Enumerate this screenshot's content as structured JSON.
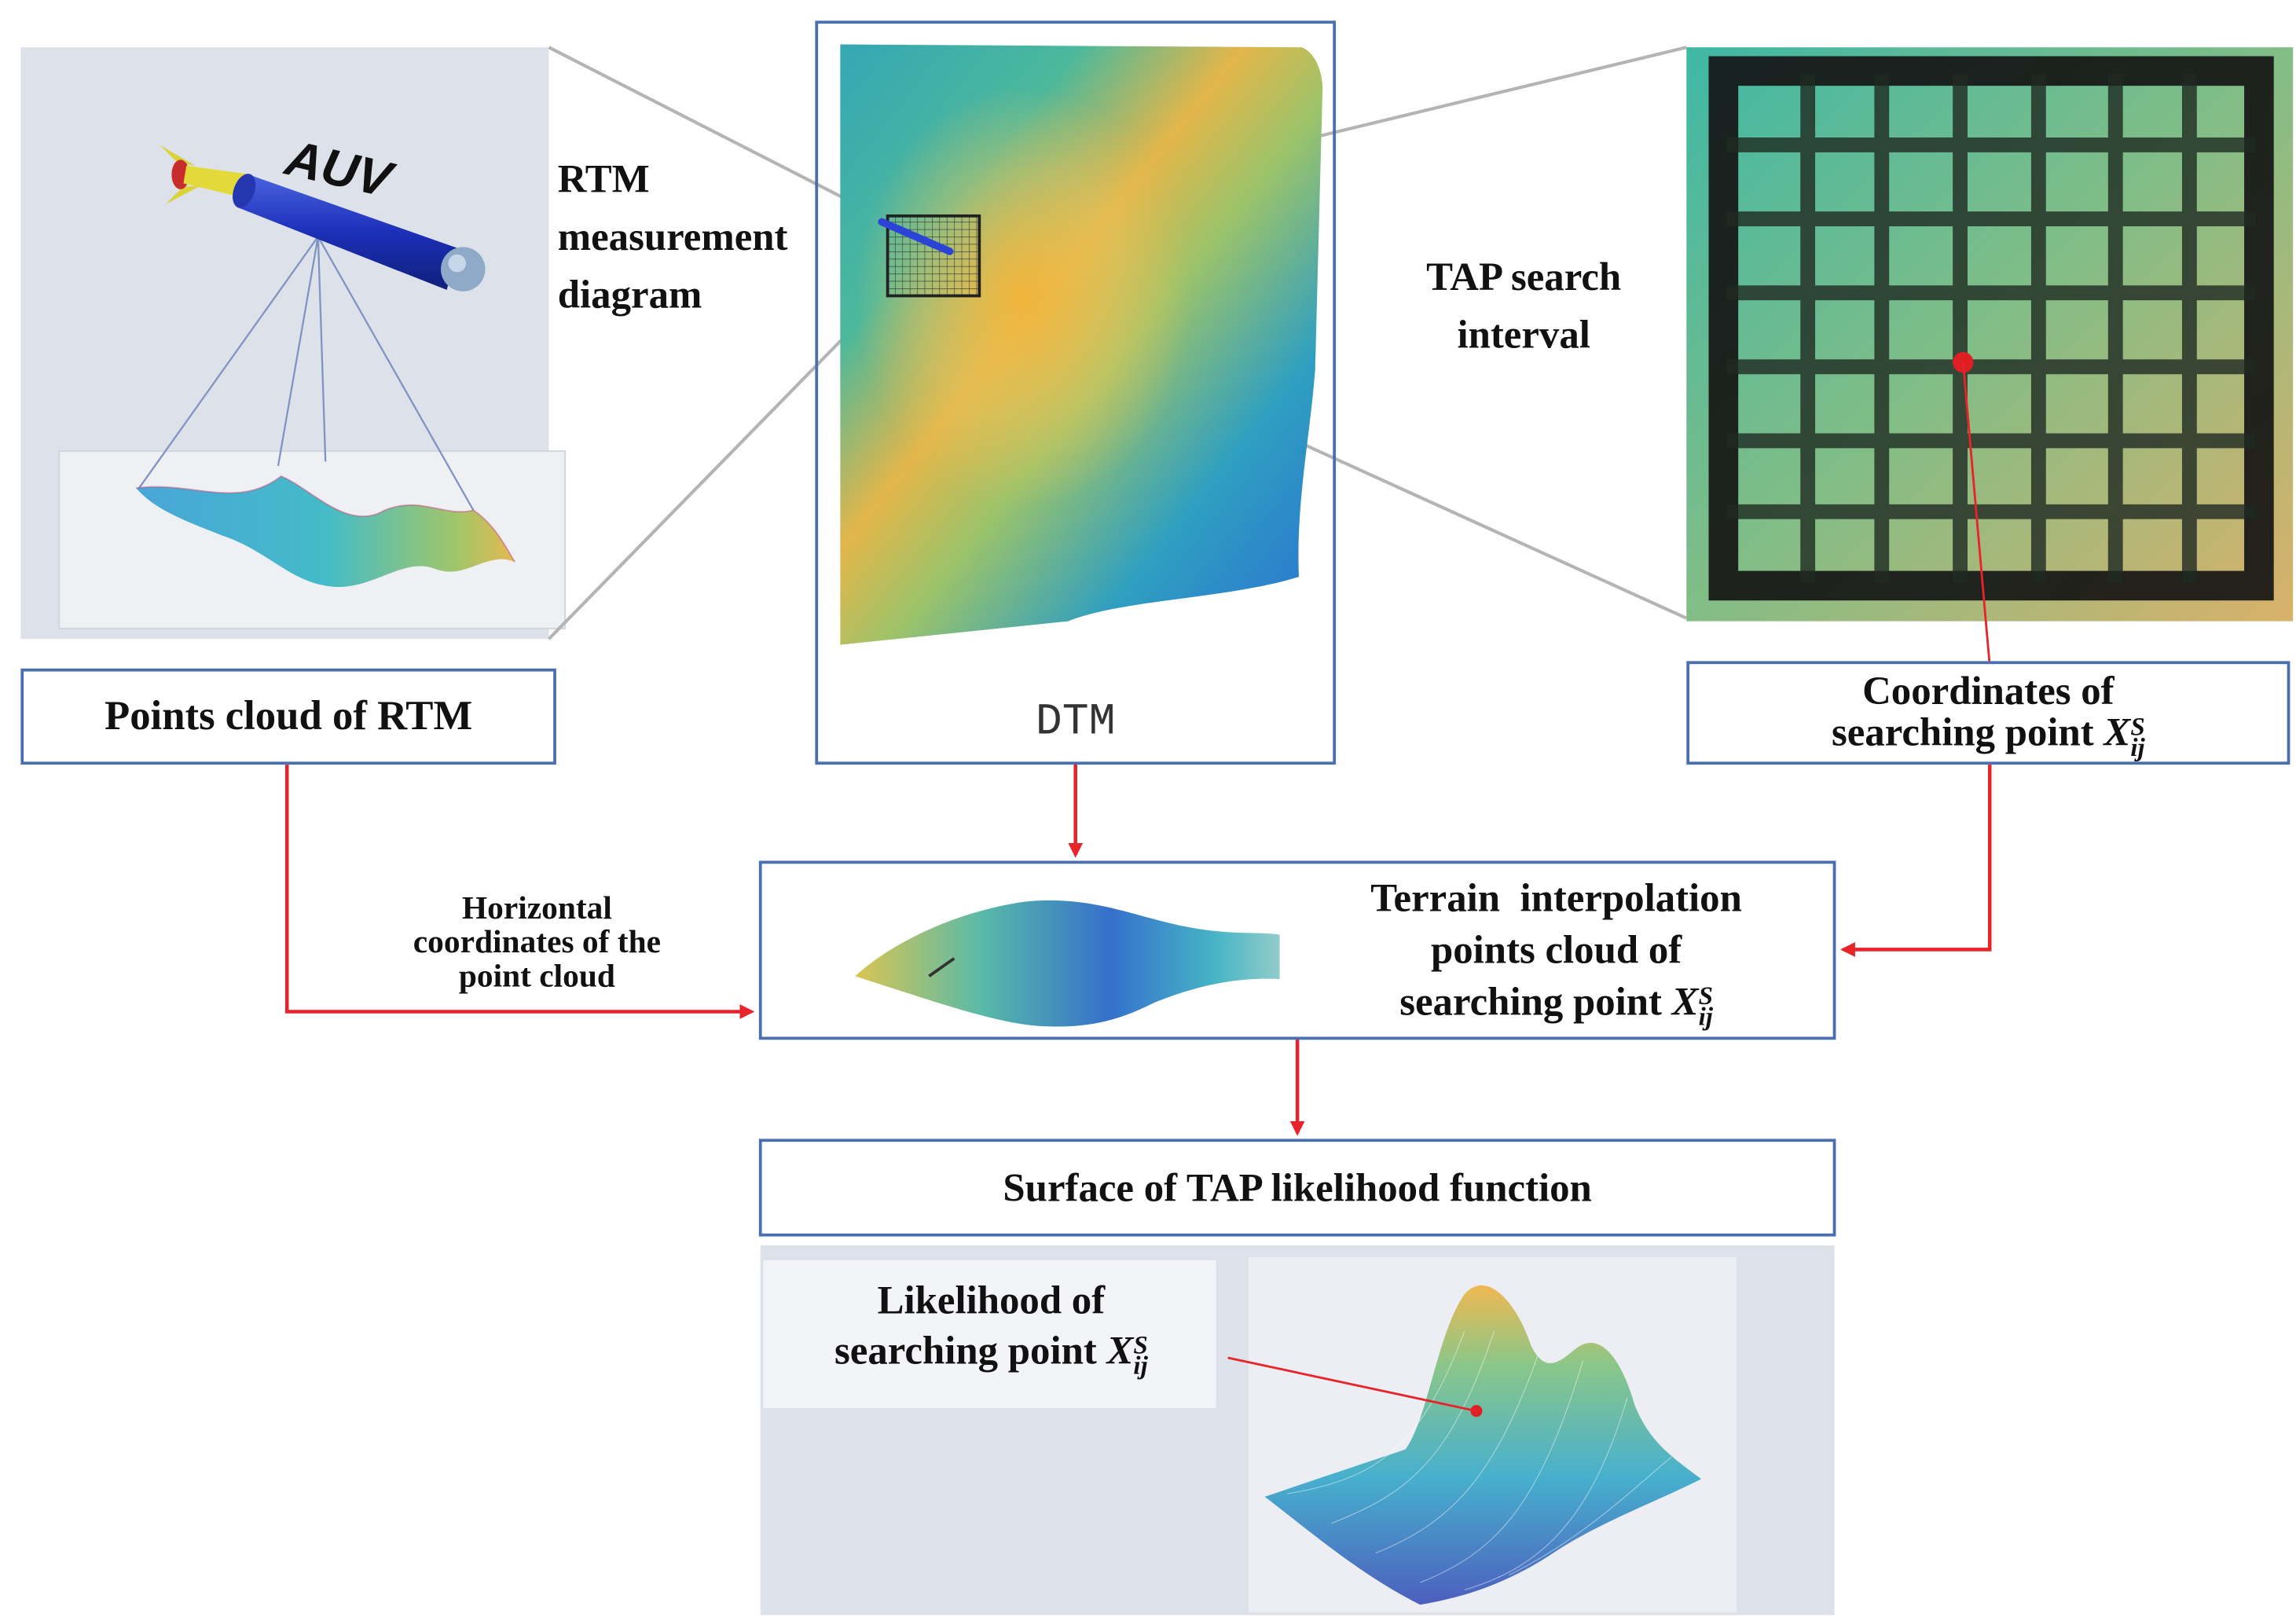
{
  "labels": {
    "auv": "AUV",
    "rtm_measurement": "RTM\nmeasurement\ndiagram",
    "tap_search": "TAP search\ninterval",
    "dtm": "DTM",
    "points_cloud_rtm": "Points cloud of RTM",
    "coords_line1": "Coordinates of",
    "coords_line2": "searching point",
    "horizontal_coords": "Horizontal\ncoordinates of the\npoint cloud",
    "terrain_line1": "Terrain  interpolation",
    "terrain_line2": "points cloud of",
    "terrain_line3": "searching point",
    "surface_tap": "Surface of TAP likelihood function",
    "likelihood_line1": "Likelihood of",
    "likelihood_line2": "searching point"
  },
  "math": {
    "symbol": "X",
    "sup": "S",
    "sub": "ij"
  },
  "colors": {
    "box_border": "#4a6fb0",
    "arrow": "#e8232a",
    "zoom_line": "#b4b4b4",
    "panel_bg": "#dde1ea"
  },
  "icons": {
    "auv": "auv-vehicle-icon",
    "dtm": "terrain-heatmap",
    "grid": "search-grid",
    "surface": "likelihood-surface"
  }
}
